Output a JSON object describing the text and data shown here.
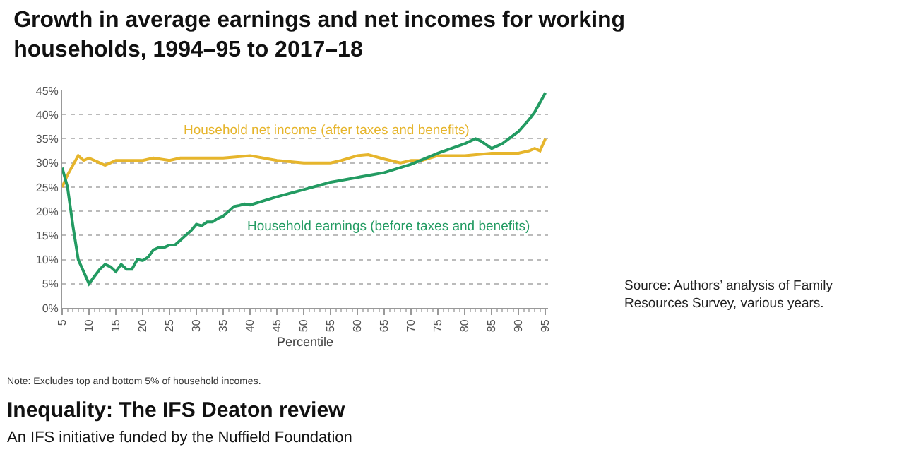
{
  "chart_data": {
    "type": "line",
    "title": "Growth in average earnings and net incomes for working households, 1994–95 to 2017–18",
    "xlabel": "Percentile",
    "xlim": [
      5,
      95.5
    ],
    "xticks": [
      5,
      10,
      15,
      20,
      25,
      30,
      35,
      40,
      45,
      50,
      55,
      60,
      65,
      70,
      75,
      80,
      85,
      90,
      95
    ],
    "ylim": [
      0,
      45
    ],
    "yticks": [
      {
        "value": 0,
        "label": "0%"
      },
      {
        "value": 5,
        "label": "5%"
      },
      {
        "value": 10,
        "label": "10%"
      },
      {
        "value": 15,
        "label": "15%"
      },
      {
        "value": 20,
        "label": "20%"
      },
      {
        "value": 25,
        "label": "25%"
      },
      {
        "value": 30,
        "label": "30%"
      },
      {
        "value": 35,
        "label": "35%"
      },
      {
        "value": 40,
        "label": "40%"
      },
      {
        "value": 45,
        "label": "45%"
      }
    ],
    "grid": "y",
    "legend": false,
    "marker": "none",
    "line_style": "solid",
    "series": [
      {
        "name": "Household net income (after taxes and benefits)",
        "color": "#e6b52c",
        "x": [
          5,
          6,
          7,
          8,
          9,
          10,
          12,
          13,
          15,
          17,
          20,
          22,
          25,
          27,
          30,
          35,
          40,
          45,
          50,
          55,
          57,
          60,
          62,
          65,
          68,
          70,
          72,
          75,
          80,
          85,
          90,
          92,
          93,
          94,
          95
        ],
        "values": [
          25,
          27.5,
          29.5,
          31.5,
          30.5,
          31,
          30,
          29.5,
          30.5,
          30.5,
          30.5,
          31,
          30.5,
          31,
          31,
          31,
          31.5,
          30.5,
          30,
          30,
          30.5,
          31.5,
          31.7,
          30.8,
          30,
          30.5,
          30.5,
          31.5,
          31.5,
          32,
          32,
          32.5,
          33,
          32.5,
          35
        ]
      },
      {
        "name": "Household earnings (before taxes and benefits)",
        "color": "#239b62",
        "x": [
          5,
          6,
          7,
          8,
          9,
          10,
          11,
          12,
          13,
          14,
          15,
          16,
          17,
          18,
          19,
          20,
          21,
          22,
          23,
          24,
          25,
          26,
          27,
          28,
          29,
          30,
          31,
          32,
          33,
          34,
          35,
          36,
          37,
          38,
          39,
          40,
          45,
          50,
          55,
          60,
          65,
          70,
          75,
          80,
          82,
          83,
          85,
          87,
          90,
          92,
          93,
          95
        ],
        "values": [
          29,
          25,
          17,
          10,
          7.5,
          5,
          6.5,
          8,
          9,
          8.5,
          7.5,
          9,
          8,
          8,
          10,
          9.8,
          10.5,
          12,
          12.5,
          12.5,
          13,
          13,
          14,
          15,
          16,
          17.3,
          17,
          17.8,
          17.8,
          18.5,
          19,
          20,
          21,
          21.2,
          21.5,
          21.3,
          23,
          24.5,
          26,
          27,
          28,
          29.7,
          32,
          34,
          35,
          34.5,
          33,
          34,
          36.5,
          39,
          40.5,
          44.5
        ]
      }
    ],
    "annotations": [
      "Source: Authors’ analysis of Family Resources Survey, various years.",
      "Note: Excludes top and bottom 5% of household incomes.",
      "Inequality: The IFS Deaton review",
      "An IFS initiative funded by the Nuffield Foundation"
    ]
  }
}
